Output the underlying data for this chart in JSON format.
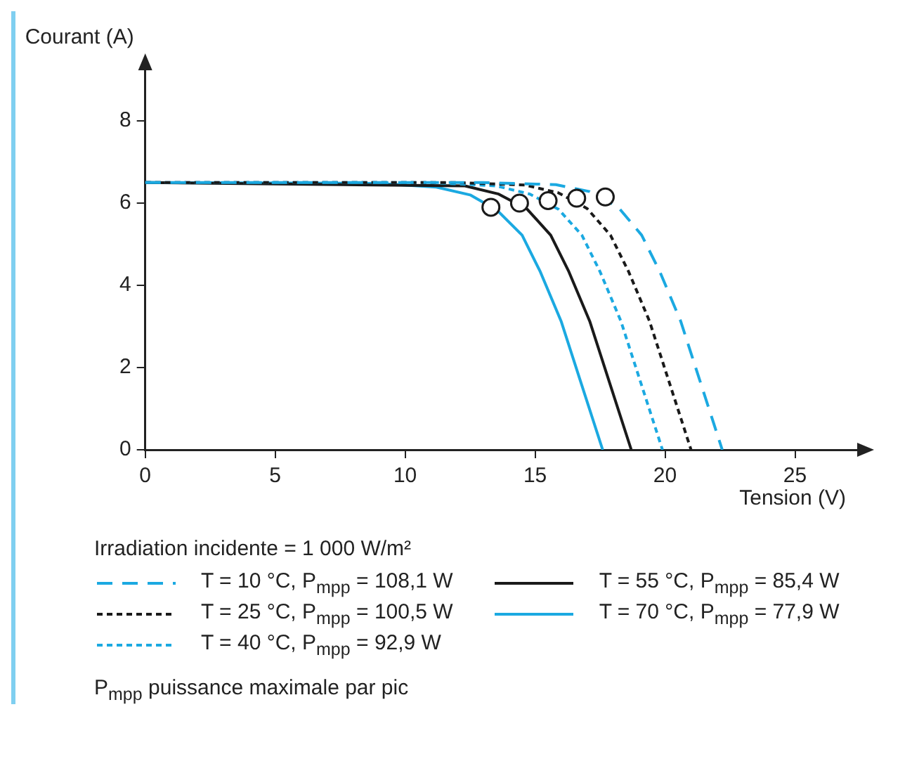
{
  "chart_data": {
    "type": "line",
    "xlabel": "Tension (V)",
    "ylabel": "Courant (A)",
    "legend_title": "Irradiation incidente = 1 000 W/m²",
    "xlim": [
      0,
      27.5
    ],
    "ylim": [
      0,
      9.3
    ],
    "xticks": [
      0,
      5,
      10,
      15,
      20,
      25
    ],
    "yticks": [
      0,
      2,
      4,
      6,
      8
    ],
    "grid": false,
    "legend": "bottom",
    "marker": "none",
    "series": [
      {
        "name": "T = 10 °C, P$_{mpp}$ = 108,1 W",
        "color": "#1ba9e1",
        "line_style": "dashed",
        "x": [
          0,
          13,
          15.8,
          17.1,
          18.2,
          19.1,
          19.8,
          20.6,
          21.3,
          22.2
        ],
        "values": [
          6.5,
          6.5,
          6.45,
          6.28,
          5.9,
          5.22,
          4.33,
          3.13,
          1.76,
          0
        ]
      },
      {
        "name": "T = 25 °C, P$_{mpp}$ = 100,5 W",
        "color": "#1a1a1a",
        "line_style": "dotted",
        "x": [
          0,
          12,
          14.6,
          15.9,
          17.0,
          17.9,
          18.6,
          19.4,
          20.1,
          21.0
        ],
        "values": [
          6.5,
          6.5,
          6.44,
          6.25,
          5.87,
          5.22,
          4.33,
          3.13,
          1.76,
          0
        ]
      },
      {
        "name": "T = 40 °C, P$_{mpp}$ = 92,9 W",
        "color": "#1ba9e1",
        "line_style": "dotted",
        "x": [
          0,
          11,
          13.5,
          14.8,
          15.9,
          16.8,
          17.5,
          18.3,
          19.0,
          19.9
        ],
        "values": [
          6.5,
          6.5,
          6.42,
          6.22,
          5.85,
          5.22,
          4.33,
          3.13,
          1.76,
          0
        ]
      },
      {
        "name": "T = 55 °C, P$_{mpp}$ = 85,4 W",
        "color": "#1a1a1a",
        "line_style": "solid",
        "x": [
          0,
          12.3,
          13.6,
          14.7,
          15.6,
          16.3,
          17.1,
          17.8,
          18.7
        ],
        "values": [
          6.5,
          6.42,
          6.22,
          5.85,
          5.22,
          4.33,
          3.13,
          1.76,
          0
        ]
      },
      {
        "name": "T = 70 °C, P$_{mpp}$ = 77,9 W",
        "color": "#1ba9e1",
        "line_style": "solid",
        "x": [
          0,
          9,
          11.2,
          12.5,
          13.55,
          14.5,
          15.2,
          16.0,
          16.7,
          17.6
        ],
        "values": [
          6.5,
          6.48,
          6.39,
          6.2,
          5.82,
          5.22,
          4.33,
          3.13,
          1.76,
          0
        ]
      },
      {
        "type": "scatter",
        "color": "#1a1a1a",
        "marker": "circle",
        "x": [
          17.7,
          16.6,
          15.5,
          14.4,
          13.3
        ],
        "values": [
          6.15,
          6.12,
          6.06,
          6.0,
          5.9
        ]
      }
    ],
    "annotations": [
      "P$_{mpp}$ puissance maximale par pic"
    ]
  }
}
